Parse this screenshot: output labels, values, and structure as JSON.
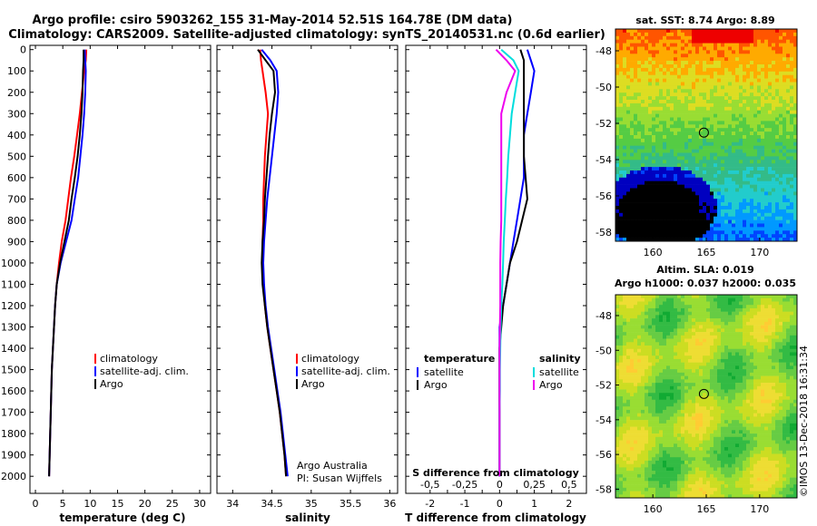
{
  "header": {
    "title_line1": "Argo profile: csiro 5903262_155 31-May-2014 52.51S 164.78E (DM data)",
    "title_line2": "Climatology: CARS2009. Satellite-adjusted climatology: synTS_20140531.nc (0.6d earlier)"
  },
  "colors": {
    "climatology": "#ff0000",
    "satellite": "#0000ff",
    "argo": "#000000",
    "sat_salinity": "#00dddd",
    "argo_salinity": "#ee00ee"
  },
  "depth_ticks": [
    "0",
    "100",
    "200",
    "300",
    "400",
    "500",
    "600",
    "700",
    "800",
    "900",
    "1000",
    "1100",
    "1200",
    "1300",
    "1400",
    "1500",
    "1600",
    "1700",
    "1800",
    "1900",
    "2000"
  ],
  "chart_data": [
    {
      "type": "line",
      "xlabel": "temperature (deg C)",
      "xticks": [
        "0",
        "5",
        "10",
        "15",
        "20",
        "25",
        "30"
      ],
      "xlim": [
        -1,
        32
      ],
      "ylim": [
        2080,
        -20
      ],
      "legend": [
        "climatology",
        "satellite-adj. clim.",
        "Argo"
      ],
      "series": [
        {
          "name": "climatology",
          "color": "#ff0000",
          "x": [
            9.3,
            9.2,
            8.9,
            8.5,
            8.1,
            7.6,
            7.1,
            6.5,
            6.0,
            5.5,
            4.8,
            4.3,
            3.9,
            3.6,
            3.4,
            3.2,
            3.0,
            2.9,
            2.8,
            2.7,
            2.6,
            2.5
          ],
          "y": [
            0,
            50,
            100,
            200,
            300,
            400,
            500,
            600,
            700,
            800,
            900,
            1000,
            1100,
            1200,
            1300,
            1400,
            1500,
            1600,
            1700,
            1800,
            1900,
            2000
          ]
        },
        {
          "name": "satellite-adj. clim.",
          "color": "#0000ff",
          "x": [
            9.0,
            9.1,
            9.2,
            9.1,
            8.9,
            8.6,
            8.2,
            7.8,
            7.2,
            6.6,
            5.6,
            4.6,
            3.9,
            3.6,
            3.4,
            3.2,
            3.0,
            2.9,
            2.8,
            2.7,
            2.6,
            2.5
          ],
          "y": [
            0,
            50,
            100,
            200,
            300,
            400,
            500,
            600,
            700,
            800,
            900,
            1000,
            1100,
            1200,
            1300,
            1400,
            1500,
            1600,
            1700,
            1800,
            1900,
            2000
          ]
        },
        {
          "name": "Argo",
          "color": "#000000",
          "x": [
            8.8,
            8.8,
            8.7,
            8.6,
            8.4,
            8.1,
            7.7,
            7.2,
            6.6,
            6.1,
            5.3,
            4.5,
            3.9,
            3.6,
            3.4,
            3.2,
            3.0,
            2.9,
            2.8,
            2.7,
            2.6,
            2.5
          ],
          "y": [
            0,
            50,
            100,
            200,
            300,
            400,
            500,
            600,
            700,
            800,
            900,
            1000,
            1100,
            1200,
            1300,
            1400,
            1500,
            1600,
            1700,
            1800,
            1900,
            2000
          ]
        }
      ]
    },
    {
      "type": "line",
      "xlabel": "salinity",
      "xticks": [
        "34",
        "34.5",
        "35",
        "35.5",
        "36"
      ],
      "xlim": [
        33.8,
        36.1
      ],
      "ylim": [
        2080,
        -20
      ],
      "legend": [
        "climatology",
        "satellite-adj. clim.",
        "Argo"
      ],
      "annotation": [
        "Argo Australia",
        "PI: Susan Wijffels"
      ],
      "series": [
        {
          "name": "climatology",
          "color": "#ff0000",
          "x": [
            34.35,
            34.36,
            34.38,
            34.42,
            34.45,
            34.43,
            34.41,
            34.4,
            34.39,
            34.39,
            34.38,
            34.38,
            34.39,
            34.41,
            34.44,
            34.48,
            34.52,
            34.56,
            34.6,
            34.63,
            34.66,
            34.68
          ],
          "y": [
            0,
            50,
            100,
            200,
            300,
            400,
            500,
            600,
            700,
            800,
            900,
            1000,
            1100,
            1200,
            1300,
            1400,
            1500,
            1600,
            1700,
            1800,
            1900,
            2000
          ]
        },
        {
          "name": "satellite-adj. clim.",
          "color": "#0000ff",
          "x": [
            34.37,
            34.48,
            34.56,
            34.58,
            34.56,
            34.53,
            34.5,
            34.47,
            34.44,
            34.42,
            34.4,
            34.39,
            34.4,
            34.42,
            34.45,
            34.49,
            34.53,
            34.57,
            34.61,
            34.64,
            34.67,
            34.7
          ],
          "y": [
            0,
            50,
            100,
            200,
            300,
            400,
            500,
            600,
            700,
            800,
            900,
            1000,
            1100,
            1200,
            1300,
            1400,
            1500,
            1600,
            1700,
            1800,
            1900,
            2000
          ]
        },
        {
          "name": "Argo",
          "color": "#000000",
          "x": [
            34.32,
            34.42,
            34.52,
            34.54,
            34.5,
            34.47,
            34.45,
            34.43,
            34.41,
            34.4,
            34.38,
            34.37,
            34.38,
            34.41,
            34.44,
            34.48,
            34.52,
            34.56,
            34.6,
            34.63,
            34.66,
            34.68
          ],
          "y": [
            0,
            50,
            100,
            200,
            300,
            400,
            500,
            600,
            700,
            800,
            900,
            1000,
            1100,
            1200,
            1300,
            1400,
            1500,
            1600,
            1700,
            1800,
            1900,
            2000
          ]
        }
      ]
    },
    {
      "type": "line",
      "xlabel": "T difference from climatology",
      "xlabel_top": "S difference from climatology",
      "xticks": [
        "-2",
        "-1.5",
        "-1",
        "-0.5",
        "0",
        "0.5",
        "1",
        "1.5",
        "2"
      ],
      "xticks_shown": [
        "-2",
        "-1",
        "0",
        "1",
        "2"
      ],
      "sticks_shown": [
        "-0.5",
        "-0.25",
        "0",
        "0.25",
        "0.5"
      ],
      "xlim": [
        -2.7,
        2.5
      ],
      "ylim": [
        2080,
        -20
      ],
      "legend_left_title": "temperature",
      "legend_right_title": "salinity",
      "legend_left": [
        "satellite",
        "Argo"
      ],
      "legend_right": [
        "satellite",
        "Argo"
      ],
      "series": [
        {
          "name": "satellite",
          "group": "temperature",
          "color": "#0000ff",
          "x": [
            0.8,
            0.9,
            1.0,
            0.9,
            0.8,
            0.7,
            0.7,
            0.7,
            0.6,
            0.5,
            0.4,
            0.3,
            0.2,
            0.1,
            0.0,
            0.0,
            0.0,
            0.0,
            0.0,
            0.0,
            0.0,
            0.0
          ],
          "y": [
            0,
            50,
            100,
            200,
            300,
            400,
            500,
            600,
            700,
            800,
            900,
            1000,
            1100,
            1200,
            1300,
            1400,
            1500,
            1600,
            1700,
            1800,
            1900,
            2000
          ]
        },
        {
          "name": "Argo",
          "group": "temperature",
          "color": "#000000",
          "x": [
            0.6,
            0.7,
            0.7,
            0.7,
            0.7,
            0.7,
            0.7,
            0.75,
            0.8,
            0.65,
            0.5,
            0.3,
            0.2,
            0.1,
            0.05,
            0.0,
            0.0,
            0.0,
            0.0,
            0.0,
            0.0,
            0.0
          ],
          "y": [
            0,
            50,
            100,
            200,
            300,
            400,
            500,
            600,
            700,
            800,
            900,
            1000,
            1100,
            1200,
            1300,
            1400,
            1500,
            1600,
            1700,
            1800,
            1900,
            2000
          ]
        },
        {
          "name": "satellite",
          "group": "salinity",
          "color": "#00dddd",
          "x": [
            0.05,
            0.4,
            0.55,
            0.45,
            0.35,
            0.3,
            0.25,
            0.22,
            0.18,
            0.15,
            0.12,
            0.1,
            0.08,
            0.05,
            0.03,
            0.02,
            0.01,
            0.01,
            0.0,
            0.0,
            0.0,
            0.0
          ],
          "y": [
            0,
            50,
            100,
            200,
            300,
            400,
            500,
            600,
            700,
            800,
            900,
            1000,
            1100,
            1200,
            1300,
            1400,
            1500,
            1600,
            1700,
            1800,
            1900,
            2000
          ]
        },
        {
          "name": "Argo",
          "group": "salinity",
          "color": "#ee00ee",
          "x": [
            -0.1,
            0.2,
            0.45,
            0.2,
            0.05,
            0.05,
            0.05,
            0.05,
            0.05,
            0.05,
            0.03,
            0.02,
            0.02,
            0.02,
            0.01,
            0.0,
            0.0,
            0.0,
            0.0,
            0.0,
            0.0,
            0.0
          ],
          "y": [
            0,
            50,
            100,
            200,
            300,
            400,
            500,
            600,
            700,
            800,
            900,
            1000,
            1100,
            1200,
            1300,
            1400,
            1500,
            1600,
            1700,
            1800,
            1900,
            2000
          ]
        }
      ]
    },
    {
      "type": "heatmap",
      "title": "sat. SST: 8.74 Argo: 8.89",
      "xticks": [
        "160",
        "165",
        "170"
      ],
      "xlim": [
        156.5,
        173.5
      ],
      "yticks": [
        "-48",
        "-50",
        "-52",
        "-54",
        "-56",
        "-58"
      ],
      "ylim": [
        -58.5,
        -46.8
      ],
      "profile_lon": 164.78,
      "profile_lat": -52.51
    },
    {
      "type": "heatmap",
      "title_line1": "Altim. SLA: 0.019",
      "title_line2": "Argo h1000: 0.037 h2000: 0.035",
      "xticks": [
        "160",
        "165",
        "170"
      ],
      "xlim": [
        156.5,
        173.5
      ],
      "yticks": [
        "-48",
        "-50",
        "-52",
        "-54",
        "-56",
        "-58"
      ],
      "ylim": [
        -58.5,
        -46.8
      ],
      "profile_lon": 164.78,
      "profile_lat": -52.51
    }
  ],
  "watermark": "©IMOS 13-Dec-2018 16:31:34"
}
